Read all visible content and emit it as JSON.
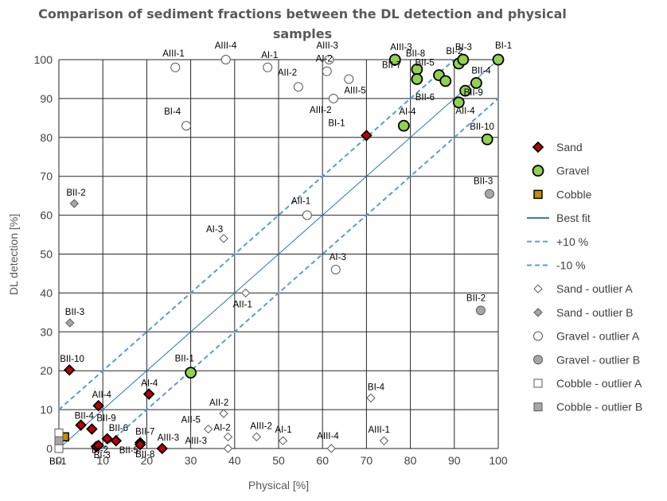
{
  "chart_data": {
    "type": "scatter",
    "title": "Comparison of sediment fractions between the DL detection and physical samples",
    "title_lines": [
      "Comparison of sediment fractions between the DL detection and physical",
      "samples"
    ],
    "xlabel": "Physical [%]",
    "ylabel": "DL detection [%]",
    "xlim": [
      0,
      100
    ],
    "ylim": [
      0,
      100
    ],
    "xticks": [
      0,
      10,
      20,
      30,
      40,
      50,
      60,
      70,
      80,
      90,
      100
    ],
    "yticks": [
      0,
      10,
      20,
      30,
      40,
      50,
      60,
      70,
      80,
      90,
      100
    ],
    "grid": "major gridlines, both axes",
    "legend_position": "right",
    "colors": {
      "sand": "#c00000",
      "gravel": "#92d050",
      "cobble": "#bf9000",
      "best_fit": "#2e75b6",
      "band": "#5b9bd5",
      "outlier_b": "#a6a6a6",
      "marker_edge": "#000000",
      "outlier_edge": "#595959",
      "grid": "#262626"
    },
    "lines": [
      {
        "name": "Best fit",
        "kind": "solid",
        "intercept": 0
      },
      {
        "name": "+10 %",
        "kind": "dashed",
        "intercept": 10
      },
      {
        "name": "-10 %",
        "kind": "dashed",
        "intercept": -10
      }
    ],
    "series": [
      {
        "name": "Sand",
        "marker": "diamond",
        "style": "filled-red",
        "points": [
          {
            "label": "BII-10",
            "x": 2.4,
            "y": 20.2
          },
          {
            "label": "AII-4",
            "x": 9,
            "y": 11
          },
          {
            "label": "BII-4",
            "x": 5,
            "y": 6
          },
          {
            "label": "BII-9",
            "x": 7.5,
            "y": 5
          },
          {
            "label": "BI-2",
            "x": 8.5,
            "y": 0.5
          },
          {
            "label": "BI-3",
            "x": 9,
            "y": 0.8
          },
          {
            "label": "BII-6",
            "x": 11,
            "y": 2.5
          },
          {
            "label": "BII-5",
            "x": 13,
            "y": 2
          },
          {
            "label": "BII-7",
            "x": 18.5,
            "y": 1.5
          },
          {
            "label": "BII-8",
            "x": 18.5,
            "y": 1
          },
          {
            "label": "AIII-3",
            "x": 23.5,
            "y": 0
          },
          {
            "label": "AI-4",
            "x": 20.5,
            "y": 14
          },
          {
            "label": "BI-1",
            "x": 70,
            "y": 80.5
          }
        ]
      },
      {
        "name": "Gravel",
        "marker": "circle",
        "style": "filled-green",
        "points": [
          {
            "label": "BII-1",
            "x": 30,
            "y": 19.5
          },
          {
            "label": "AI-4",
            "x": 78.5,
            "y": 83
          },
          {
            "label": "AIII-3",
            "x": 76.5,
            "y": 100
          },
          {
            "label": "BII-8",
            "x": 81.5,
            "y": 97.5
          },
          {
            "label": "BII-7",
            "x": 81.5,
            "y": 95
          },
          {
            "label": "BII-5",
            "x": 86.5,
            "y": 96
          },
          {
            "label": "BII-6",
            "x": 88,
            "y": 94.5
          },
          {
            "label": "BI-2",
            "x": 91,
            "y": 99
          },
          {
            "label": "BI-3",
            "x": 92,
            "y": 100
          },
          {
            "label": "BI-1",
            "x": 100,
            "y": 100
          },
          {
            "label": "BII-4",
            "x": 95,
            "y": 94
          },
          {
            "label": "BII-9",
            "x": 92.5,
            "y": 92
          },
          {
            "label": "AII-4",
            "x": 91,
            "y": 89
          },
          {
            "label": "BII-10",
            "x": 97.5,
            "y": 79.5
          }
        ]
      },
      {
        "name": "Cobble",
        "marker": "square",
        "style": "filled-gold",
        "points": [
          {
            "label": "",
            "x": 1.3,
            "y": 3
          }
        ]
      },
      {
        "name": "Sand - outlier A",
        "marker": "diamond",
        "style": "open",
        "points": [
          {
            "label": "AI-3",
            "x": 37.5,
            "y": 54
          },
          {
            "label": "AII-1",
            "x": 42.5,
            "y": 40
          },
          {
            "label": "AII-2",
            "x": 37.5,
            "y": 9
          },
          {
            "label": "AII-5",
            "x": 34,
            "y": 5
          },
          {
            "label": "AI-2",
            "x": 38.5,
            "y": 3
          },
          {
            "label": "AIII-3",
            "x": 38.5,
            "y": 0
          },
          {
            "label": "AIII-2",
            "x": 45,
            "y": 3
          },
          {
            "label": "AI-1",
            "x": 51,
            "y": 2
          },
          {
            "label": "AIII-4",
            "x": 62,
            "y": 0
          },
          {
            "label": "BI-4",
            "x": 71,
            "y": 13
          },
          {
            "label": "AIII-1",
            "x": 74,
            "y": 2
          }
        ]
      },
      {
        "name": "Sand - outlier B",
        "marker": "diamond",
        "style": "grey",
        "points": [
          {
            "label": "BII-2",
            "x": 3.5,
            "y": 63
          },
          {
            "label": "BII-3",
            "x": 2.5,
            "y": 32.3
          }
        ]
      },
      {
        "name": "Gravel - outlier A",
        "marker": "circle",
        "style": "open",
        "points": [
          {
            "label": "AIII-1",
            "x": 26.5,
            "y": 98
          },
          {
            "label": "AIII-4",
            "x": 38,
            "y": 100
          },
          {
            "label": "AI-1",
            "x": 47.5,
            "y": 98
          },
          {
            "label": "AII-2",
            "x": 54.5,
            "y": 93
          },
          {
            "label": "AIII-3",
            "x": 61.5,
            "y": 100
          },
          {
            "label": "AI-2",
            "x": 61,
            "y": 97
          },
          {
            "label": "AIII-5",
            "x": 66,
            "y": 95
          },
          {
            "label": "AIII-2",
            "x": 62.5,
            "y": 90
          },
          {
            "label": "BI-4",
            "x": 29,
            "y": 83
          },
          {
            "label": "AII-1",
            "x": 56.5,
            "y": 60
          },
          {
            "label": "AI-3",
            "x": 63,
            "y": 46
          }
        ]
      },
      {
        "name": "Gravel - outlier B",
        "marker": "circle",
        "style": "grey",
        "points": [
          {
            "label": "BII-3",
            "x": 98,
            "y": 65.5
          },
          {
            "label": "BII-2",
            "x": 96,
            "y": 35.5
          }
        ]
      },
      {
        "name": "Cobble - outlier A",
        "marker": "square",
        "style": "open",
        "points": [
          {
            "label": "",
            "x": 0,
            "y": 4
          },
          {
            "label": "BI-1",
            "x": 0,
            "y": 0
          }
        ]
      },
      {
        "name": "Cobble - outlier B",
        "marker": "square",
        "style": "grey",
        "points": [
          {
            "label": "",
            "x": 0,
            "y": 2
          }
        ]
      }
    ],
    "legend": [
      {
        "key": "sand",
        "label": "Sand"
      },
      {
        "key": "gravel",
        "label": "Gravel"
      },
      {
        "key": "cobble",
        "label": "Cobble"
      },
      {
        "key": "best_fit",
        "label": "Best fit"
      },
      {
        "key": "plus10",
        "label": "+10 %"
      },
      {
        "key": "minus10",
        "label": "-10 %"
      },
      {
        "key": "sand_a",
        "label": "Sand - outlier A"
      },
      {
        "key": "sand_b",
        "label": "Sand - outlier B"
      },
      {
        "key": "gravel_a",
        "label": "Gravel - outlier A"
      },
      {
        "key": "gravel_b",
        "label": "Gravel - outlier B"
      },
      {
        "key": "cobble_a",
        "label": "Cobble - outlier A"
      },
      {
        "key": "cobble_b",
        "label": "Cobble - outlier B"
      }
    ]
  }
}
